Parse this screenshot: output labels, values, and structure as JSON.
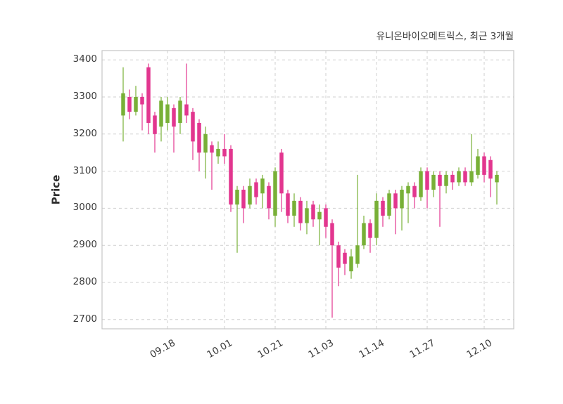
{
  "page": {
    "background": "#ffffff"
  },
  "chart_data": {
    "type": "candlestick",
    "title": "유니온바이오메트릭스, 최근 3개월",
    "ylabel": "Price",
    "ylim": [
      2675,
      3425
    ],
    "y_ticks": [
      2700,
      2800,
      2900,
      3000,
      3100,
      3200,
      3300,
      3400
    ],
    "x_ticks": [
      {
        "index": 7,
        "label": "09.18"
      },
      {
        "index": 16,
        "label": "10.01"
      },
      {
        "index": 24,
        "label": "10.21"
      },
      {
        "index": 32,
        "label": "11.03"
      },
      {
        "index": 40,
        "label": "11.14"
      },
      {
        "index": 48,
        "label": "11.27"
      },
      {
        "index": 57,
        "label": "12.10"
      }
    ],
    "grid": "dashed",
    "legend": "none",
    "up_color": "#78b037",
    "down_color": "#e2368f",
    "candle_format": [
      "open",
      "high",
      "low",
      "close"
    ],
    "candles": [
      [
        3250,
        3380,
        3180,
        3310
      ],
      [
        3300,
        3320,
        3240,
        3260
      ],
      [
        3260,
        3330,
        3250,
        3300
      ],
      [
        3300,
        3310,
        3210,
        3280
      ],
      [
        3380,
        3390,
        3200,
        3230
      ],
      [
        3250,
        3260,
        3150,
        3200
      ],
      [
        3220,
        3300,
        3180,
        3290
      ],
      [
        3230,
        3300,
        3210,
        3280
      ],
      [
        3270,
        3280,
        3150,
        3220
      ],
      [
        3230,
        3300,
        3200,
        3290
      ],
      [
        3280,
        3390,
        3230,
        3250
      ],
      [
        3260,
        3270,
        3130,
        3180
      ],
      [
        3230,
        3240,
        3100,
        3150
      ],
      [
        3150,
        3220,
        3080,
        3200
      ],
      [
        3170,
        3180,
        3050,
        3150
      ],
      [
        3140,
        3180,
        3120,
        3160
      ],
      [
        3160,
        3200,
        3120,
        3140
      ],
      [
        3160,
        3170,
        2990,
        3010
      ],
      [
        3010,
        3060,
        2880,
        3050
      ],
      [
        3050,
        3060,
        2960,
        3000
      ],
      [
        3010,
        3080,
        3000,
        3060
      ],
      [
        3070,
        3080,
        3010,
        3030
      ],
      [
        3040,
        3090,
        3000,
        3080
      ],
      [
        3060,
        3070,
        2970,
        3000
      ],
      [
        2980,
        3110,
        2950,
        3100
      ],
      [
        3150,
        3160,
        2990,
        3040
      ],
      [
        3040,
        3050,
        2960,
        2980
      ],
      [
        2980,
        3040,
        2950,
        3020
      ],
      [
        3020,
        3030,
        2940,
        2960
      ],
      [
        2960,
        3020,
        2930,
        3000
      ],
      [
        3010,
        3020,
        2950,
        2970
      ],
      [
        2970,
        3010,
        2900,
        2990
      ],
      [
        3000,
        3010,
        2920,
        2950
      ],
      [
        2960,
        2970,
        2705,
        2900
      ],
      [
        2900,
        2910,
        2790,
        2840
      ],
      [
        2880,
        2890,
        2820,
        2850
      ],
      [
        2830,
        2890,
        2810,
        2870
      ],
      [
        2850,
        3090,
        2840,
        2900
      ],
      [
        2900,
        2980,
        2890,
        2960
      ],
      [
        2960,
        2970,
        2880,
        2920
      ],
      [
        2920,
        3040,
        2900,
        3020
      ],
      [
        3020,
        3030,
        2950,
        2980
      ],
      [
        2980,
        3050,
        2970,
        3040
      ],
      [
        3040,
        3050,
        2930,
        3000
      ],
      [
        3000,
        3060,
        2940,
        3050
      ],
      [
        3040,
        3070,
        2960,
        3060
      ],
      [
        3060,
        3070,
        3000,
        3030
      ],
      [
        3030,
        3110,
        3020,
        3100
      ],
      [
        3100,
        3110,
        3000,
        3050
      ],
      [
        3050,
        3100,
        3030,
        3090
      ],
      [
        3090,
        3100,
        2950,
        3060
      ],
      [
        3060,
        3100,
        3040,
        3090
      ],
      [
        3090,
        3100,
        3050,
        3070
      ],
      [
        3070,
        3110,
        3060,
        3100
      ],
      [
        3100,
        3110,
        3060,
        3070
      ],
      [
        3070,
        3200,
        3060,
        3100
      ],
      [
        3090,
        3160,
        3080,
        3140
      ],
      [
        3140,
        3150,
        3070,
        3090
      ],
      [
        3130,
        3140,
        3030,
        3080
      ],
      [
        3070,
        3100,
        3010,
        3090
      ]
    ]
  }
}
